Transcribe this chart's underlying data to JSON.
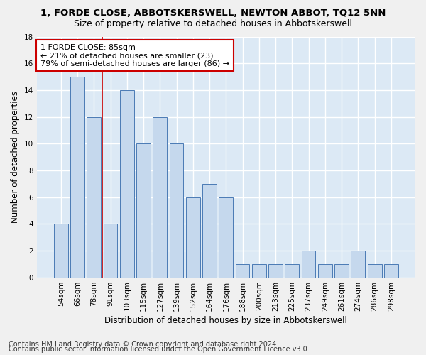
{
  "title": "1, FORDE CLOSE, ABBOTSKERSWELL, NEWTON ABBOT, TQ12 5NN",
  "subtitle": "Size of property relative to detached houses in Abbotskerswell",
  "xlabel": "Distribution of detached houses by size in Abbotskerswell",
  "ylabel": "Number of detached properties",
  "footnote1": "Contains HM Land Registry data © Crown copyright and database right 2024.",
  "footnote2": "Contains public sector information licensed under the Open Government Licence v3.0.",
  "categories": [
    "54sqm",
    "66sqm",
    "78sqm",
    "91sqm",
    "103sqm",
    "115sqm",
    "127sqm",
    "139sqm",
    "152sqm",
    "164sqm",
    "176sqm",
    "188sqm",
    "200sqm",
    "213sqm",
    "225sqm",
    "237sqm",
    "249sqm",
    "261sqm",
    "274sqm",
    "286sqm",
    "298sqm"
  ],
  "values": [
    4,
    15,
    12,
    4,
    14,
    10,
    12,
    10,
    6,
    7,
    6,
    1,
    1,
    1,
    1,
    2,
    1,
    1,
    2,
    1,
    1
  ],
  "bar_color": "#c5d8ed",
  "bar_edge_color": "#4a7ab5",
  "subject_line_color": "#cc0000",
  "annotation_text": "1 FORDE CLOSE: 85sqm\n← 21% of detached houses are smaller (23)\n79% of semi-detached houses are larger (86) →",
  "annotation_box_color": "#ffffff",
  "annotation_box_edge": "#cc0000",
  "ylim": [
    0,
    18
  ],
  "yticks": [
    0,
    2,
    4,
    6,
    8,
    10,
    12,
    14,
    16,
    18
  ],
  "background_color": "#dce9f5",
  "grid_color": "#ffffff",
  "title_fontsize": 9.5,
  "subtitle_fontsize": 9,
  "axis_label_fontsize": 8.5,
  "tick_fontsize": 7.5,
  "annotation_fontsize": 8,
  "footnote_fontsize": 7
}
